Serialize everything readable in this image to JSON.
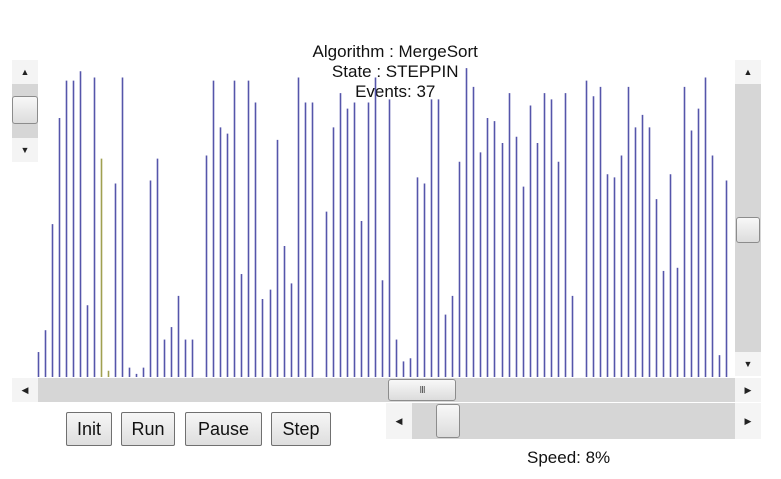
{
  "status": {
    "algorithm_label": "Algorithm : MergeSort",
    "state_label": "State : STEPPIN",
    "events_label": "Events: 37"
  },
  "colors": {
    "bar": "#5555aa",
    "highlight": "#a0a050",
    "scrollbar_track": "#d6d6d6"
  },
  "chart_data": {
    "type": "bar",
    "title": "",
    "ylim": [
      0,
      100
    ],
    "values": [
      8,
      15,
      49,
      83,
      95,
      95,
      98,
      23,
      96,
      70,
      2,
      62,
      96,
      3,
      1,
      3,
      63,
      70,
      12,
      16,
      26,
      12,
      12,
      0,
      71,
      95,
      80,
      78,
      95,
      33,
      95,
      88,
      25,
      28,
      76,
      42,
      30,
      96,
      88,
      88,
      0,
      53,
      80,
      91,
      86,
      88,
      50,
      88,
      96,
      31,
      89,
      12,
      5,
      6,
      64,
      62,
      89,
      89,
      20,
      26,
      69,
      99,
      93,
      72,
      83,
      82,
      75,
      91,
      77,
      61,
      87,
      75,
      91,
      89,
      69,
      91,
      26,
      0,
      95,
      90,
      93,
      65,
      64,
      71,
      93,
      80,
      84,
      80,
      57,
      34,
      65,
      35,
      93,
      79,
      86,
      96,
      71,
      7,
      63
    ],
    "highlighted_indices": [
      9,
      10
    ]
  },
  "controls": {
    "init_label": "Init",
    "run_label": "Run",
    "pause_label": "Pause",
    "step_label": "Step"
  },
  "speed": {
    "label": "Speed: 8%",
    "value": 8
  }
}
